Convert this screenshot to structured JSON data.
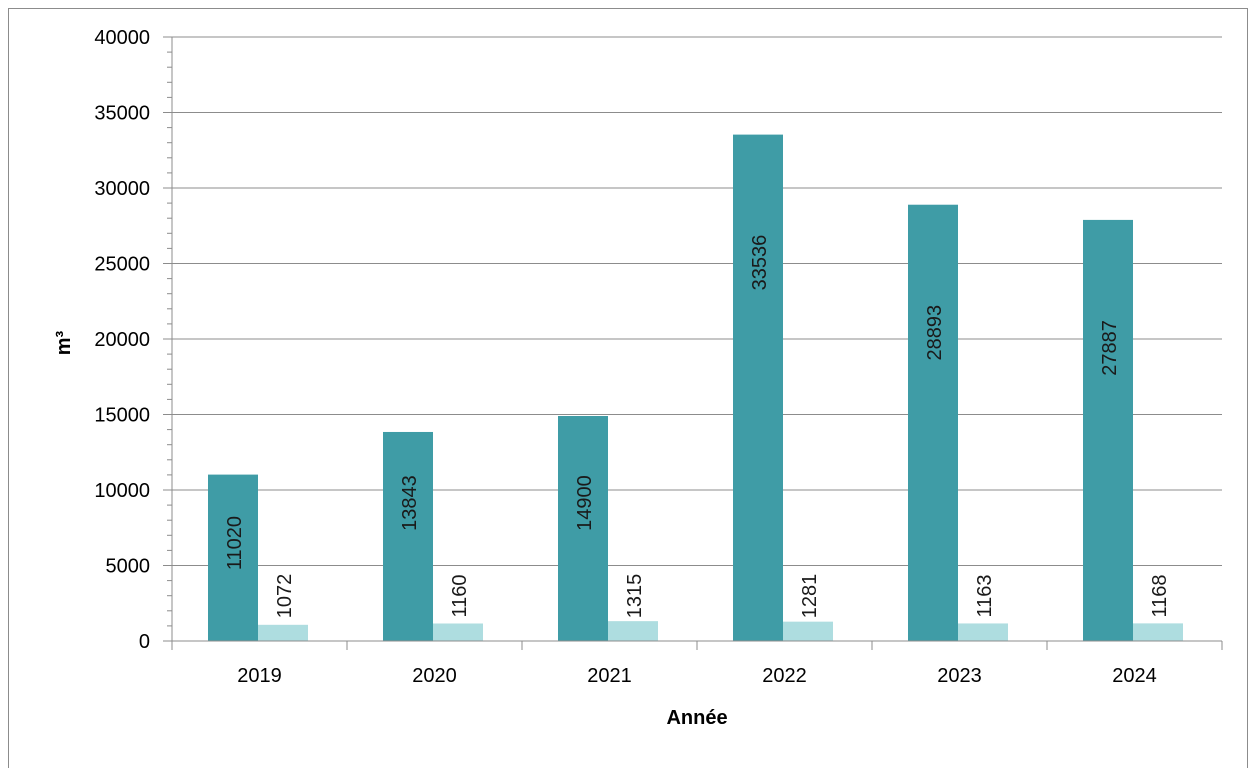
{
  "chart_data": {
    "type": "bar",
    "categories": [
      "2019",
      "2020",
      "2021",
      "2022",
      "2023",
      "2024"
    ],
    "series": [
      {
        "values": [
          11020,
          13843,
          14900,
          33536,
          28893,
          27887
        ],
        "color": "#3f9ca6"
      },
      {
        "values": [
          1072,
          1160,
          1315,
          1281,
          1163,
          1168
        ],
        "color": "#aedde0"
      }
    ],
    "xlabel": "Année",
    "ylabel": "m³",
    "ylim": [
      0,
      40000
    ],
    "yticks": [
      "0",
      "5000",
      "10000",
      "15000",
      "20000",
      "25000",
      "30000",
      "35000",
      "40000"
    ],
    "grid": true,
    "legend": "none"
  }
}
